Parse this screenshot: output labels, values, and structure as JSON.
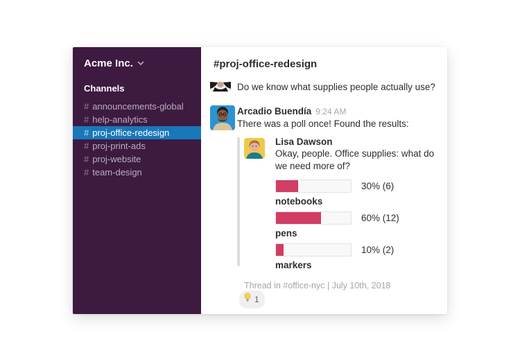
{
  "colors": {
    "sidebar_bg": "#3d1a40",
    "selected_channel_bg": "#1878ba",
    "poll_bar_fill": "#d13d63",
    "poll_bar_track": "#f8f8f8",
    "quote_bar": "#dcdcdc",
    "text_dark": "#2c2d30",
    "text_muted": "#a6a6ab"
  },
  "sidebar": {
    "workspace_name": "Acme Inc.",
    "channels_header": "Channels",
    "channels": [
      {
        "prefix": "#",
        "label": "announcements-global",
        "selected": false
      },
      {
        "prefix": "#",
        "label": "help-analytics",
        "selected": false
      },
      {
        "prefix": "#",
        "label": "proj-office-redesign",
        "selected": true
      },
      {
        "prefix": "#",
        "label": "proj-print-ads",
        "selected": false
      },
      {
        "prefix": "#",
        "label": "proj-website",
        "selected": false
      },
      {
        "prefix": "#",
        "label": "team-design",
        "selected": false
      }
    ]
  },
  "main": {
    "channel_title": "#proj-office-redesign",
    "messages": [
      {
        "text": "Do we know what supplies people actually use?"
      },
      {
        "author": "Arcadio Buendía",
        "time": "9:24 AM",
        "text": "There was a poll once! Found the results:",
        "attachment": {
          "author": "Lisa Dawson",
          "text": "Okay, people. Office supplies: what do we need more of?",
          "poll": [
            {
              "label": "notebooks",
              "percent": 30,
              "value": "30% (6)"
            },
            {
              "label": "pens",
              "percent": 60,
              "value": "60% (12)"
            },
            {
              "label": "markers",
              "percent": 10,
              "value": "10% (2)"
            }
          ],
          "footer": "Thread in #office-nyc | July 10th, 2018"
        },
        "reactions": [
          {
            "emoji_name": "bulb-icon",
            "count": "1"
          }
        ]
      }
    ]
  }
}
